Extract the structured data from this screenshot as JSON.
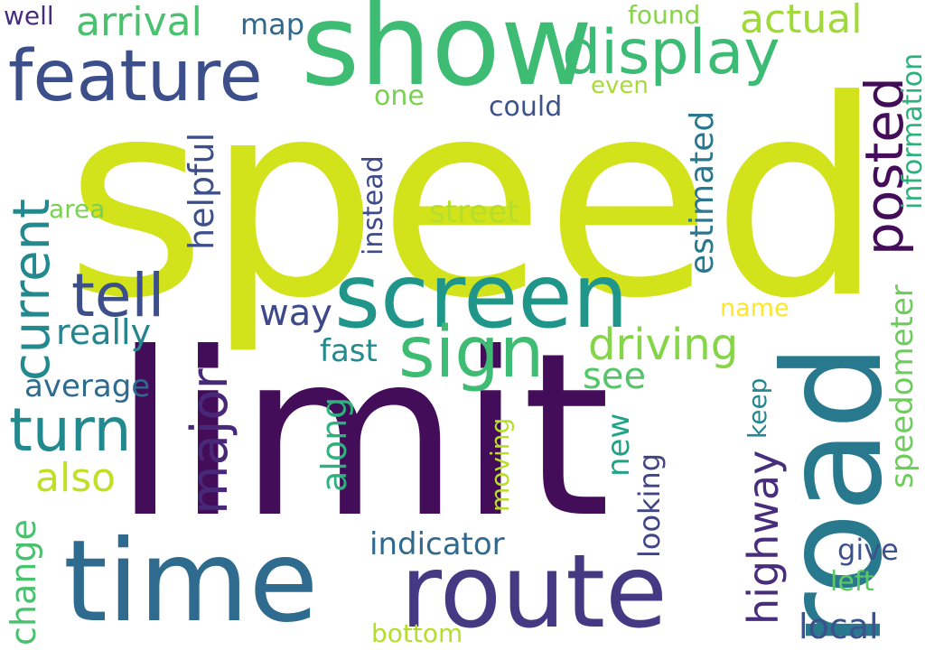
{
  "words": [
    {
      "text": "speed",
      "color": "#d2e21b"
    },
    {
      "text": "limit",
      "color": "#440d59"
    },
    {
      "text": "road",
      "color": "#29798e"
    },
    {
      "text": "show",
      "color": "#3fbc73"
    },
    {
      "text": "time",
      "color": "#2e6b8e"
    },
    {
      "text": "route",
      "color": "#443982"
    },
    {
      "text": "screen",
      "color": "#20968a"
    },
    {
      "text": "feature",
      "color": "#3c4f8a"
    },
    {
      "text": "display",
      "color": "#3cbb75"
    },
    {
      "text": "current",
      "color": "#22898e"
    },
    {
      "text": "posted",
      "color": "#440d59"
    },
    {
      "text": "sign",
      "color": "#3fbc73"
    },
    {
      "text": "tell",
      "color": "#3c4f8a"
    },
    {
      "text": "turn",
      "color": "#22898e"
    },
    {
      "text": "major",
      "color": "#482878"
    },
    {
      "text": "driving",
      "color": "#86d549"
    },
    {
      "text": "arrival",
      "color": "#4ac16d"
    },
    {
      "text": "actual",
      "color": "#a0da39"
    },
    {
      "text": "highway",
      "color": "#472d7b"
    },
    {
      "text": "information",
      "color": "#2db27d"
    },
    {
      "text": "estimated",
      "color": "#2a788e"
    },
    {
      "text": "speedometer",
      "color": "#6ccd5a"
    },
    {
      "text": "helpful",
      "color": "#3c4f8a"
    },
    {
      "text": "indicator",
      "color": "#31688e"
    },
    {
      "text": "also",
      "color": "#c0df25"
    },
    {
      "text": "along",
      "color": "#2db27d"
    },
    {
      "text": "average",
      "color": "#2f6b8e"
    },
    {
      "text": "really",
      "color": "#25848e"
    },
    {
      "text": "way",
      "color": "#3e4989"
    },
    {
      "text": "street",
      "color": "#b5de2b"
    },
    {
      "text": "see",
      "color": "#54c568"
    },
    {
      "text": "fast",
      "color": "#238a8d"
    },
    {
      "text": "instead",
      "color": "#3e4989"
    },
    {
      "text": "change",
      "color": "#4ac16d"
    },
    {
      "text": "new",
      "color": "#20a386"
    },
    {
      "text": "looking",
      "color": "#414487"
    },
    {
      "text": "moving",
      "color": "#b8de29"
    },
    {
      "text": "local",
      "color": "#3b528b"
    },
    {
      "text": "give",
      "color": "#3b528b"
    },
    {
      "text": "keep",
      "color": "#24868e"
    },
    {
      "text": "left",
      "color": "#5ec962"
    },
    {
      "text": "name",
      "color": "#fde725"
    },
    {
      "text": "map",
      "color": "#31688e"
    },
    {
      "text": "found",
      "color": "#86d549"
    },
    {
      "text": "even",
      "color": "#a8db34"
    },
    {
      "text": "could",
      "color": "#3b528b"
    },
    {
      "text": "one",
      "color": "#7ad151"
    },
    {
      "text": "area",
      "color": "#7ad151"
    },
    {
      "text": "well",
      "color": "#472d7b"
    },
    {
      "text": "bottom",
      "color": "#b5de2b"
    }
  ]
}
